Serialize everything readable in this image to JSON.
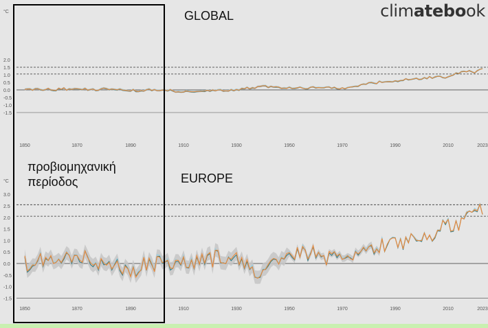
{
  "brand": {
    "pre": "clim",
    "bold": "atebo",
    "post": "ok"
  },
  "annotation": {
    "line1": "προβιομηχανική",
    "line2": "περίοδος"
  },
  "colors": {
    "orange": "#ef8a3a",
    "teal": "#1a6f7a",
    "lightblue": "#8ecfe6",
    "band": "#c4c4c4",
    "green_strip": "#c8f0b0"
  },
  "chart_data": [
    {
      "type": "line",
      "title": "GLOBAL",
      "unit": "°C",
      "ylim": [
        -1.5,
        2.0
      ],
      "yticks": [
        "2.0",
        "1.5",
        "1.0",
        "0.5",
        "0.0",
        "-0.5",
        "-1.0",
        "-1.5"
      ],
      "xticks": [
        "1850",
        "1870",
        "1890",
        "1910",
        "1930",
        "1950",
        "1970",
        "1990",
        "2010",
        "2023"
      ],
      "xlim": [
        1850,
        2023
      ],
      "reference_lines": [
        1.5,
        1.05
      ],
      "series": [
        {
          "values": [
            [
              1850,
              0.0
            ],
            [
              1860,
              0.05
            ],
            [
              1870,
              0.05
            ],
            [
              1880,
              0.05
            ],
            [
              1890,
              -0.05
            ],
            [
              1900,
              0.0
            ],
            [
              1910,
              -0.15
            ],
            [
              1920,
              -0.05
            ],
            [
              1930,
              0.0
            ],
            [
              1940,
              0.25
            ],
            [
              1950,
              0.1
            ],
            [
              1960,
              0.15
            ],
            [
              1970,
              0.1
            ],
            [
              1980,
              0.45
            ],
            [
              1990,
              0.6
            ],
            [
              2000,
              0.75
            ],
            [
              2010,
              0.9
            ],
            [
              2016,
              1.25
            ],
            [
              2020,
              1.2
            ],
            [
              2023,
              1.45
            ]
          ]
        }
      ]
    },
    {
      "type": "line",
      "title": "EUROPE",
      "unit": "°C",
      "ylim": [
        -1.5,
        3.0
      ],
      "yticks": [
        "3.0",
        "2.5",
        "2.0",
        "1.5",
        "1.0",
        "0.5",
        "0.0",
        "-0.5",
        "-1.0",
        "-1.5"
      ],
      "xticks": [
        "1850",
        "1870",
        "1890",
        "1910",
        "1930",
        "1950",
        "1970",
        "1990",
        "2010",
        "2023"
      ],
      "xlim": [
        1850,
        2023
      ],
      "reference_lines": [
        2.55,
        2.05
      ],
      "series": [
        {
          "values": [
            [
              1850,
              0.1
            ],
            [
              1860,
              0.2
            ],
            [
              1870,
              0.3
            ],
            [
              1880,
              0.0
            ],
            [
              1890,
              -0.3
            ],
            [
              1900,
              0.1
            ],
            [
              1910,
              0.0
            ],
            [
              1920,
              0.2
            ],
            [
              1930,
              0.3
            ],
            [
              1940,
              -0.5
            ],
            [
              1950,
              0.6
            ],
            [
              1960,
              0.4
            ],
            [
              1970,
              0.4
            ],
            [
              1980,
              0.5
            ],
            [
              1990,
              1.0
            ],
            [
              2000,
              1.3
            ],
            [
              2010,
              1.6
            ],
            [
              2020,
              2.3
            ],
            [
              2023,
              2.55
            ]
          ]
        }
      ]
    }
  ]
}
